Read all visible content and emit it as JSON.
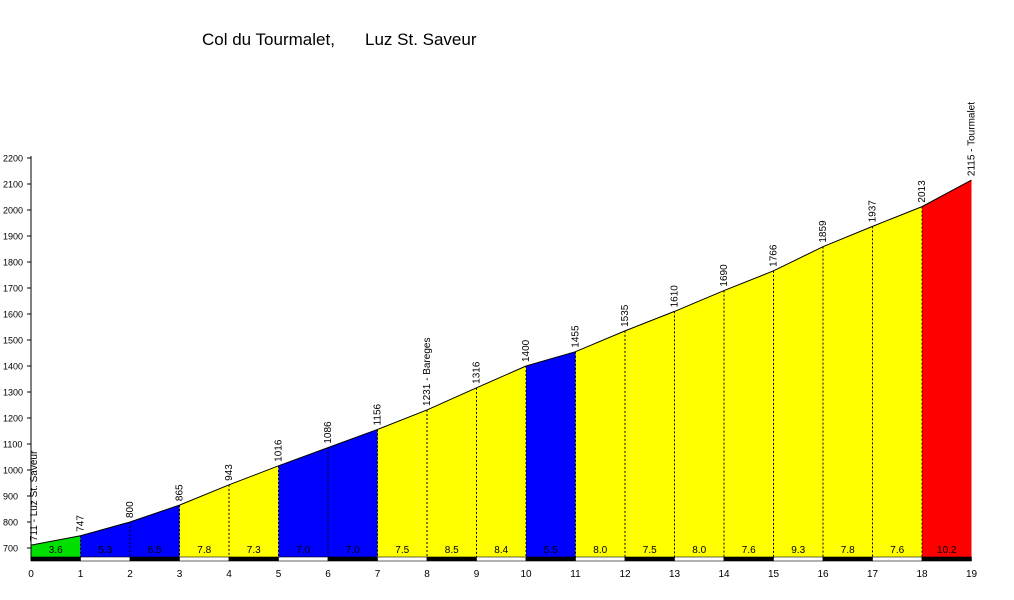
{
  "chart_data": {
    "type": "area",
    "title_left": "Col du Tourmalet,",
    "title_right": "Luz St. Saveur",
    "xlim": [
      0,
      19
    ],
    "ylim": [
      700,
      2200
    ],
    "y_ticks": [
      700,
      800,
      900,
      1000,
      1100,
      1200,
      1300,
      1400,
      1500,
      1600,
      1700,
      1800,
      1900,
      2000,
      2100,
      2200
    ],
    "x_ticks": [
      0,
      1,
      2,
      3,
      4,
      5,
      6,
      7,
      8,
      9,
      10,
      11,
      12,
      13,
      14,
      15,
      16,
      17,
      18,
      19
    ],
    "points": [
      {
        "x": 0,
        "y": 711,
        "label": "711 - Luz St. Saveur"
      },
      {
        "x": 1,
        "y": 747,
        "label": "747"
      },
      {
        "x": 2,
        "y": 800,
        "label": "800"
      },
      {
        "x": 3,
        "y": 865,
        "label": "865"
      },
      {
        "x": 4,
        "y": 943,
        "label": "943"
      },
      {
        "x": 5,
        "y": 1016,
        "label": "1016"
      },
      {
        "x": 6,
        "y": 1086,
        "label": "1086"
      },
      {
        "x": 7,
        "y": 1156,
        "label": "1156"
      },
      {
        "x": 8,
        "y": 1231,
        "label": "1231 - Bareges"
      },
      {
        "x": 9,
        "y": 1316,
        "label": "1316"
      },
      {
        "x": 10,
        "y": 1400,
        "label": "1400"
      },
      {
        "x": 11,
        "y": 1455,
        "label": "1455"
      },
      {
        "x": 12,
        "y": 1535,
        "label": "1535"
      },
      {
        "x": 13,
        "y": 1610,
        "label": "1610"
      },
      {
        "x": 14,
        "y": 1690,
        "label": "1690"
      },
      {
        "x": 15,
        "y": 1766,
        "label": "1766"
      },
      {
        "x": 16,
        "y": 1859,
        "label": "1859"
      },
      {
        "x": 17,
        "y": 1937,
        "label": "1937"
      },
      {
        "x": 18,
        "y": 2013,
        "label": "2013"
      },
      {
        "x": 19,
        "y": 2115,
        "label": "2115 - Tourmalet"
      }
    ],
    "gradients": [
      "3.6",
      "5.3",
      "6.5",
      "7.8",
      "7.3",
      "7.0",
      "7.0",
      "7.5",
      "8.5",
      "8.4",
      "5.5",
      "8.0",
      "7.5",
      "8.0",
      "7.6",
      "9.3",
      "7.8",
      "7.6",
      "10.2"
    ],
    "segment_colors": [
      "#00e000",
      "#0000ff",
      "#0000ff",
      "#ffff00",
      "#ffff00",
      "#0000ff",
      "#0000ff",
      "#ffff00",
      "#ffff00",
      "#ffff00",
      "#0000ff",
      "#ffff00",
      "#ffff00",
      "#ffff00",
      "#ffff00",
      "#ffff00",
      "#ffff00",
      "#ffff00",
      "#ff0000"
    ]
  }
}
